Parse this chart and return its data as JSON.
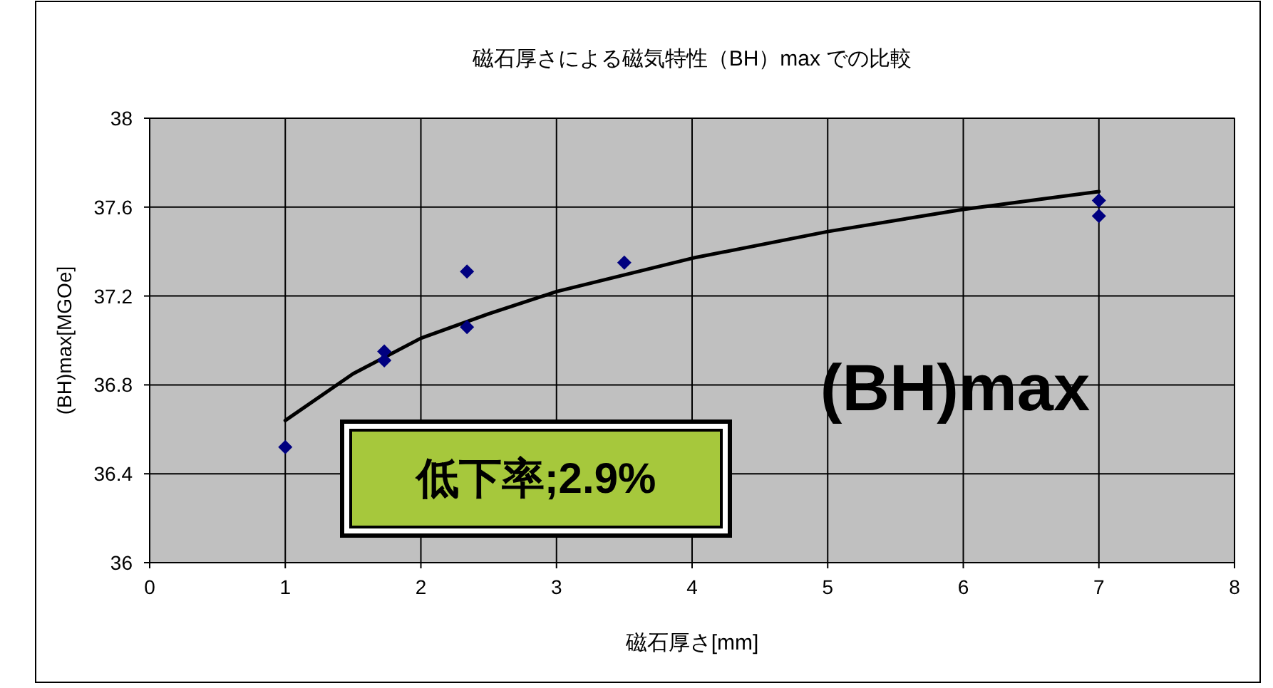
{
  "chart_data": {
    "type": "scatter",
    "title": "磁石厚さによる磁気特性（BH）max での比較",
    "xlabel": "磁石厚さ[mm]",
    "ylabel": "(BH)max[MGOe]",
    "series": [
      {
        "color": "#000080",
        "x": [
          1,
          1.73,
          1.73,
          2.34,
          2.34,
          3.5,
          7,
          7
        ],
        "values": [
          36.52,
          36.95,
          36.91,
          37.31,
          37.06,
          37.35,
          37.63,
          37.56
        ]
      },
      {
        "type": "line",
        "marker": "none",
        "color": "#000000",
        "x": [
          1,
          1.5,
          2,
          2.5,
          3,
          4,
          5,
          6,
          7
        ],
        "values": [
          36.64,
          36.85,
          37.01,
          37.12,
          37.22,
          37.37,
          37.49,
          37.59,
          37.67
        ]
      }
    ],
    "xlim": [
      0,
      8
    ],
    "ylim": [
      36,
      38
    ],
    "xticks": [
      0,
      1,
      2,
      3,
      4,
      5,
      6,
      7,
      8
    ],
    "yticks": [
      36,
      36.4,
      36.8,
      37.2,
      37.6,
      38
    ],
    "grid": true,
    "marker": "diamond",
    "annotations": [
      "低下率;2.9%",
      "(BH)max"
    ]
  }
}
